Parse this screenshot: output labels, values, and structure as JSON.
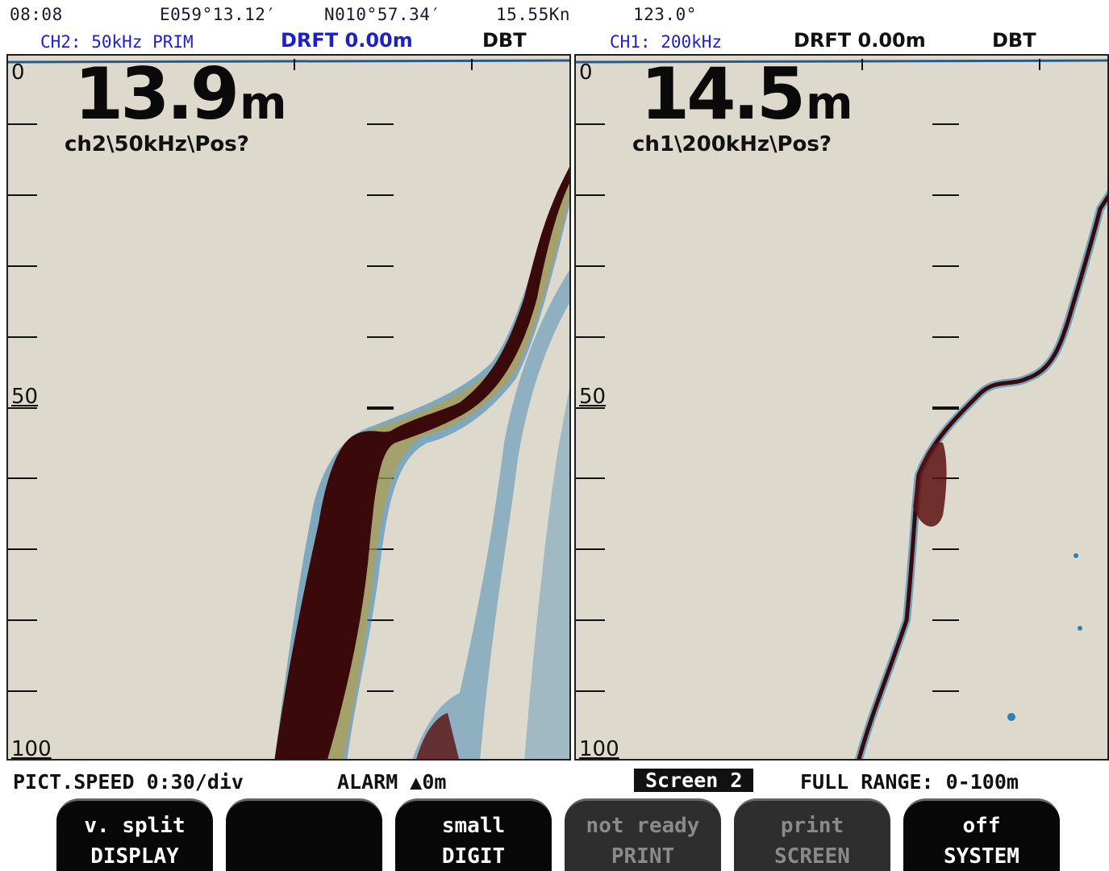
{
  "header": {
    "time": "08:08",
    "longitude": "E059°13.12′",
    "latitude": "N010°57.34′",
    "speed": "15.55Kn",
    "heading": "123.0°"
  },
  "channels": [
    {
      "label": "CH2: 50kHz PRIM",
      "draft": "DRFT 0.00m",
      "mode": "DBT",
      "depth_value": "13.9",
      "depth_unit": "m",
      "info": "ch2\\50kHz\\Pos?",
      "scale_top": "0",
      "scale_mid": "50",
      "scale_bottom": "100"
    },
    {
      "label": "CH1: 200kHz",
      "draft": "DRFT 0.00m",
      "mode": "DBT",
      "depth_value": "14.5",
      "depth_unit": "m",
      "info": "ch1\\200kHz\\Pos?",
      "scale_top": "0",
      "scale_mid": "50",
      "scale_bottom": "100"
    }
  ],
  "status": {
    "pict_speed": "PICT.SPEED 0:30/div",
    "alarm": "ALARM ▲0m",
    "screen": "Screen 2",
    "range": "FULL RANGE: 0-100m"
  },
  "softkeys": [
    {
      "line1": "v. split",
      "line2": "DISPLAY",
      "enabled": true
    },
    {
      "line1": "",
      "line2": "",
      "enabled": true
    },
    {
      "line1": "small",
      "line2": "DIGIT",
      "enabled": true
    },
    {
      "line1": "not ready",
      "line2": "PRINT",
      "enabled": false
    },
    {
      "line1": "print",
      "line2": "SCREEN",
      "enabled": false
    },
    {
      "line1": "off",
      "line2": "SYSTEM",
      "enabled": true
    }
  ],
  "colors": {
    "panel_bg": "#ddd9cc",
    "accent_blue": "#1f1fc8",
    "echo_strong": "#3a0a0a",
    "echo_weak": "#1e6fa0"
  }
}
